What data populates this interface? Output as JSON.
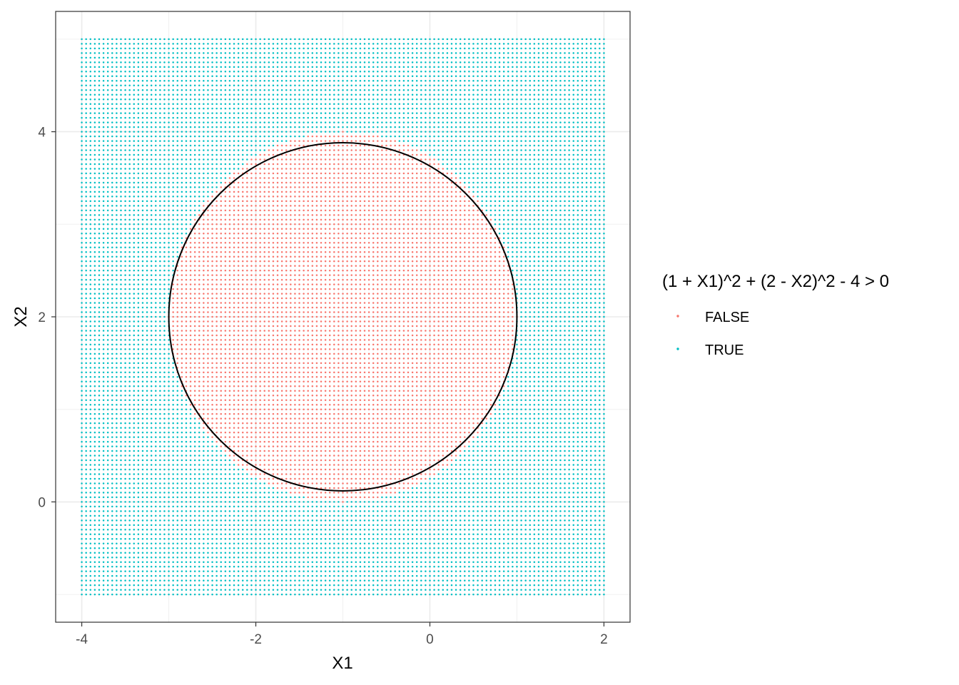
{
  "chart_data": {
    "type": "scatter",
    "title": "",
    "xlabel": "X1",
    "ylabel": "X2",
    "xlim": [
      -4.3,
      2.3
    ],
    "ylim": [
      -1.3,
      5.3
    ],
    "x_ticks": [
      -4,
      -2,
      0,
      2
    ],
    "y_ticks": [
      0,
      2,
      4
    ],
    "x_tick_labels": [
      "-4",
      "-2",
      "0",
      "2"
    ],
    "y_tick_labels": [
      "0",
      "2",
      "4"
    ],
    "grid": true,
    "grid_range": {
      "x": [
        -4,
        2
      ],
      "y": [
        -1,
        5
      ],
      "step": 0.05
    },
    "boundary": {
      "type": "circle",
      "center": [
        -1,
        2
      ],
      "radius": 2,
      "color": "#000000"
    },
    "legend": {
      "title": "(1 + X1)^2 + (2 - X2)^2 - 4 > 0",
      "placement": "right",
      "entries": [
        {
          "label": "FALSE",
          "color": "#F8766D"
        },
        {
          "label": "TRUE",
          "color": "#00BFC4"
        }
      ]
    },
    "series": [
      {
        "name": "FALSE",
        "color": "#F8766D",
        "rule": "(1 + X1)^2 + (2 - X2)^2 - 4 <= 0"
      },
      {
        "name": "TRUE",
        "color": "#00BFC4",
        "rule": "(1 + X1)^2 + (2 - X2)^2 - 4 > 0"
      }
    ]
  }
}
